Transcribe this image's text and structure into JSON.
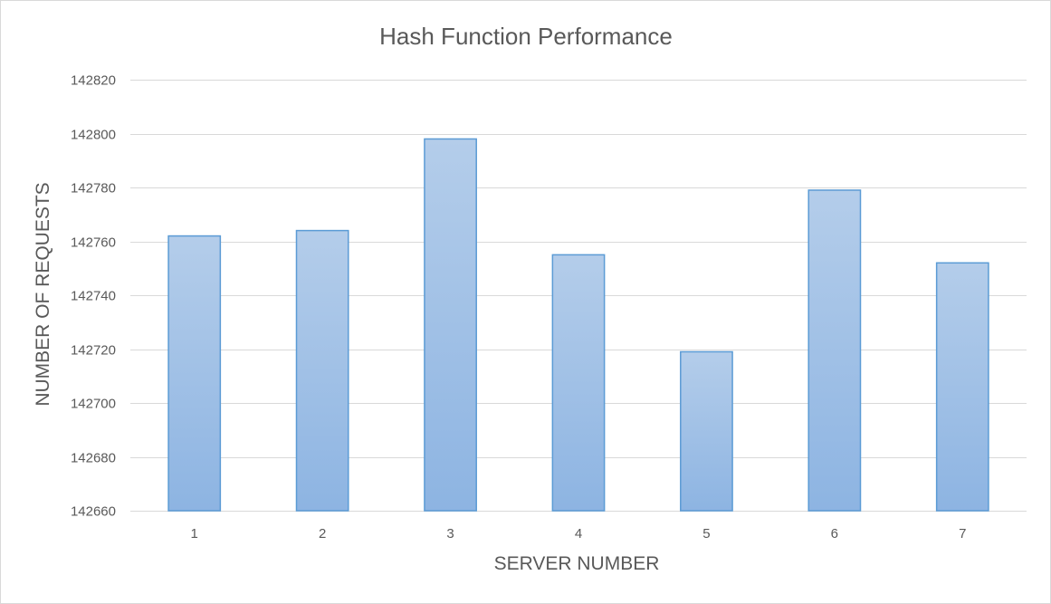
{
  "chart_data": {
    "type": "bar",
    "title": "Hash Function Performance",
    "xlabel": "SERVER NUMBER",
    "ylabel": "NUMBER OF REQUESTS",
    "categories": [
      "1",
      "2",
      "3",
      "4",
      "5",
      "6",
      "7"
    ],
    "values": [
      142762,
      142764,
      142798,
      142755,
      142719,
      142779,
      142752
    ],
    "ylim": [
      142660,
      142820
    ],
    "yticks": [
      142660,
      142680,
      142700,
      142720,
      142740,
      142760,
      142780,
      142800,
      142820
    ],
    "grid": true,
    "legend": "none",
    "colors": {
      "bar_fill_top": "#b4cdea",
      "bar_fill_bottom": "#8db4e2",
      "bar_stroke": "#5b9bd5"
    }
  }
}
